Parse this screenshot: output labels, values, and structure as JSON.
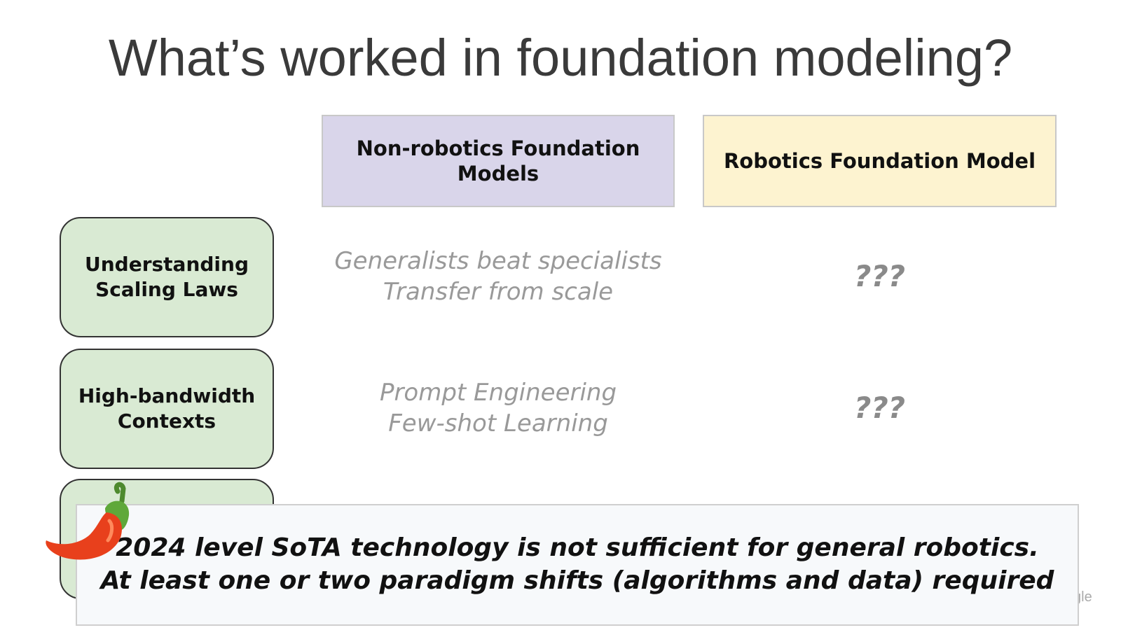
{
  "title": "What’s worked in foundation modeling?",
  "columns": [
    "Non-robotics Foundation Models",
    "Robotics Foundation Model"
  ],
  "rows": [
    {
      "label": "Understanding Scaling Laws",
      "non_robotics": [
        "Generalists beat specialists",
        "Transfer from scale"
      ],
      "robotics": "???"
    },
    {
      "label": "High-bandwidth Contexts",
      "non_robotics": [
        "Prompt Engineering",
        "Few-shot Learning"
      ],
      "robotics": "???"
    }
  ],
  "callout": [
    "2024 level SoTA technology is not sufficient for general robotics.",
    "At least one or two paradigm shifts (algorithms and data) required"
  ],
  "footer": "gle"
}
